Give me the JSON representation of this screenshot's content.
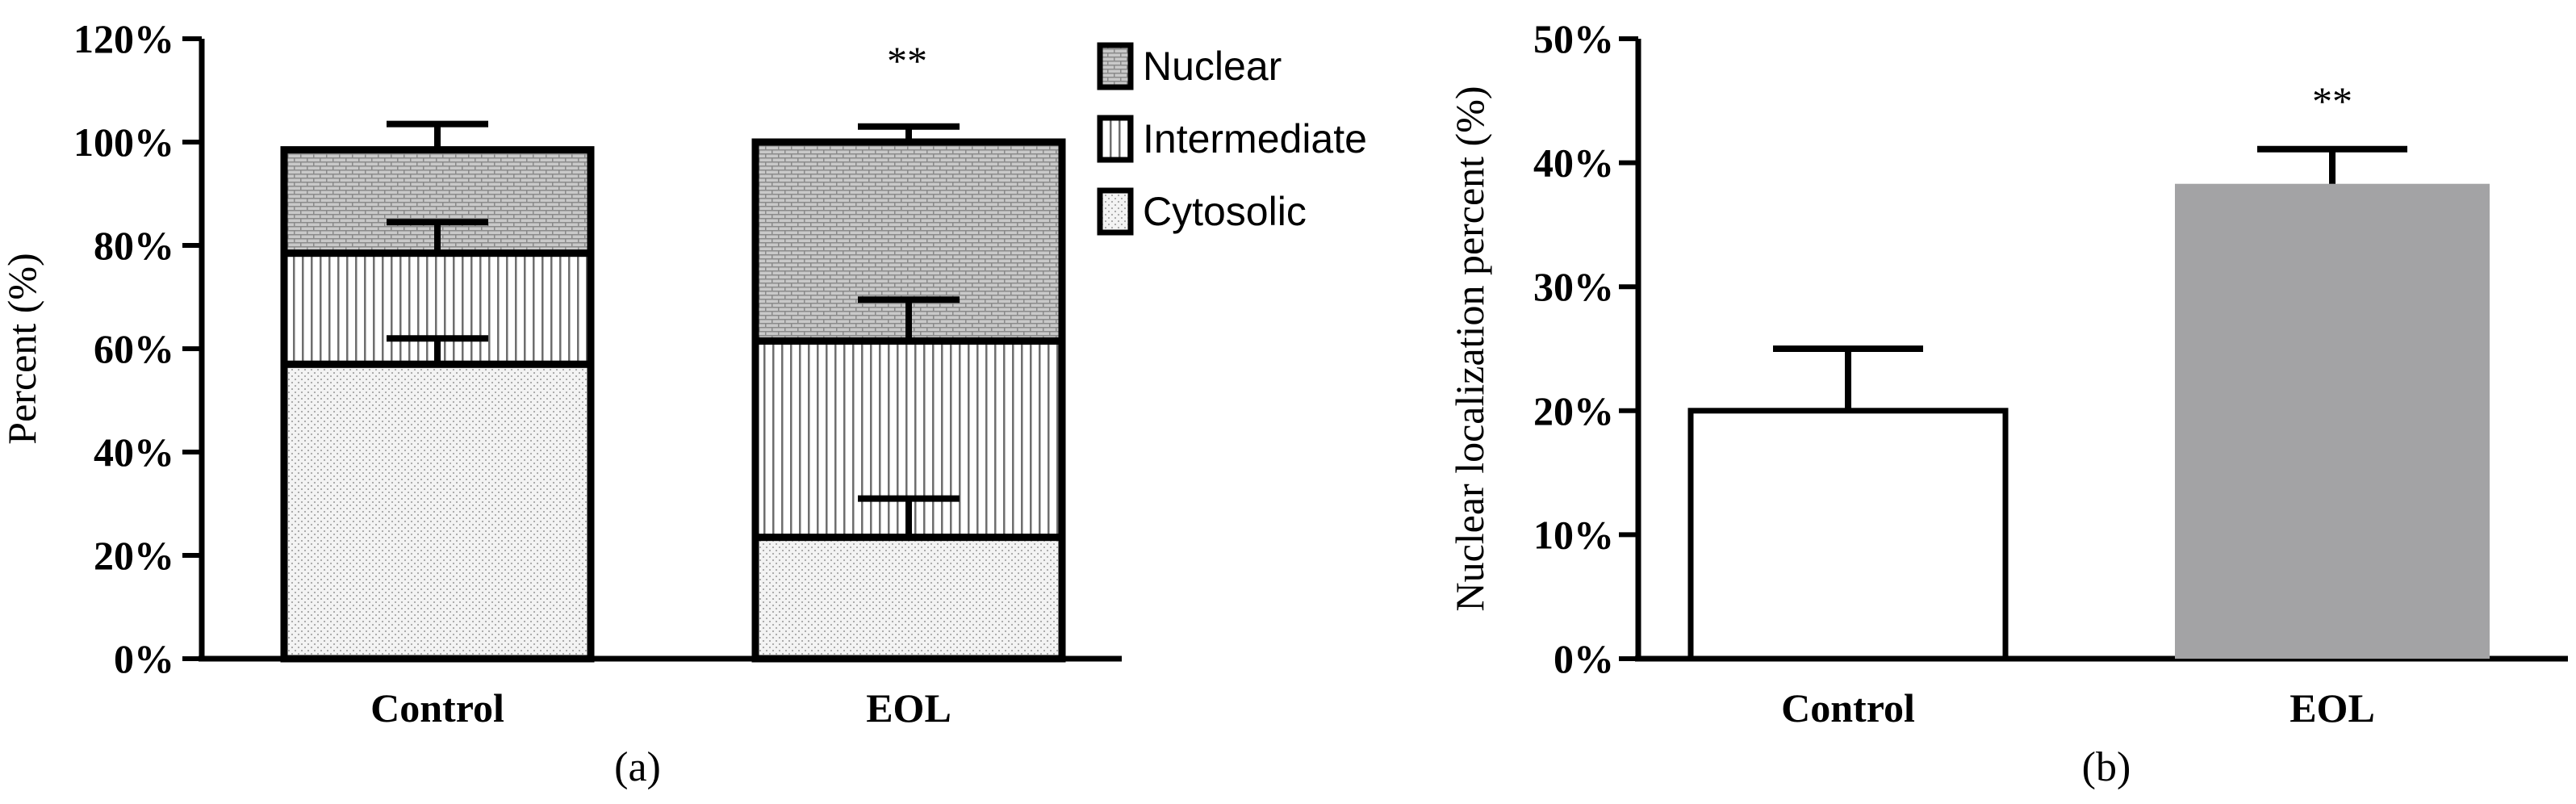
{
  "chart_data": [
    {
      "type": "bar",
      "stacked": true,
      "caption": "(a)",
      "ylabel": "Percent (%)",
      "xlabel": "",
      "ylim": [
        0,
        120
      ],
      "yticks": [
        0,
        20,
        40,
        60,
        80,
        100,
        120
      ],
      "tick_suffix": "%",
      "categories": [
        "Control",
        "EOL"
      ],
      "series": [
        {
          "name": "Cytosolic",
          "pattern": "dots",
          "values": [
            57,
            23.5
          ],
          "errors": [
            5,
            7.5
          ]
        },
        {
          "name": "Intermediate",
          "pattern": "vertical",
          "values": [
            21.5,
            38
          ],
          "errors": [
            6,
            8
          ]
        },
        {
          "name": "Nuclear",
          "pattern": "brick",
          "values": [
            20,
            38.5
          ],
          "errors": [
            5,
            3
          ]
        }
      ],
      "annotations": [
        {
          "category": "EOL",
          "text": "**"
        }
      ],
      "legend": "top-right",
      "grid": false
    },
    {
      "type": "bar",
      "caption": "(b)",
      "ylabel": "Nuclear localization percent (%)",
      "xlabel": "",
      "ylim": [
        0,
        50
      ],
      "yticks": [
        0,
        10,
        20,
        30,
        40,
        50
      ],
      "tick_suffix": "%",
      "categories": [
        "Control",
        "EOL"
      ],
      "values": [
        20,
        38.3
      ],
      "errors": [
        5,
        2.8
      ],
      "bar_colors": [
        "#ffffff",
        "#a3a3a5"
      ],
      "annotations": [
        {
          "category": "EOL",
          "text": "**"
        }
      ],
      "grid": false
    }
  ]
}
